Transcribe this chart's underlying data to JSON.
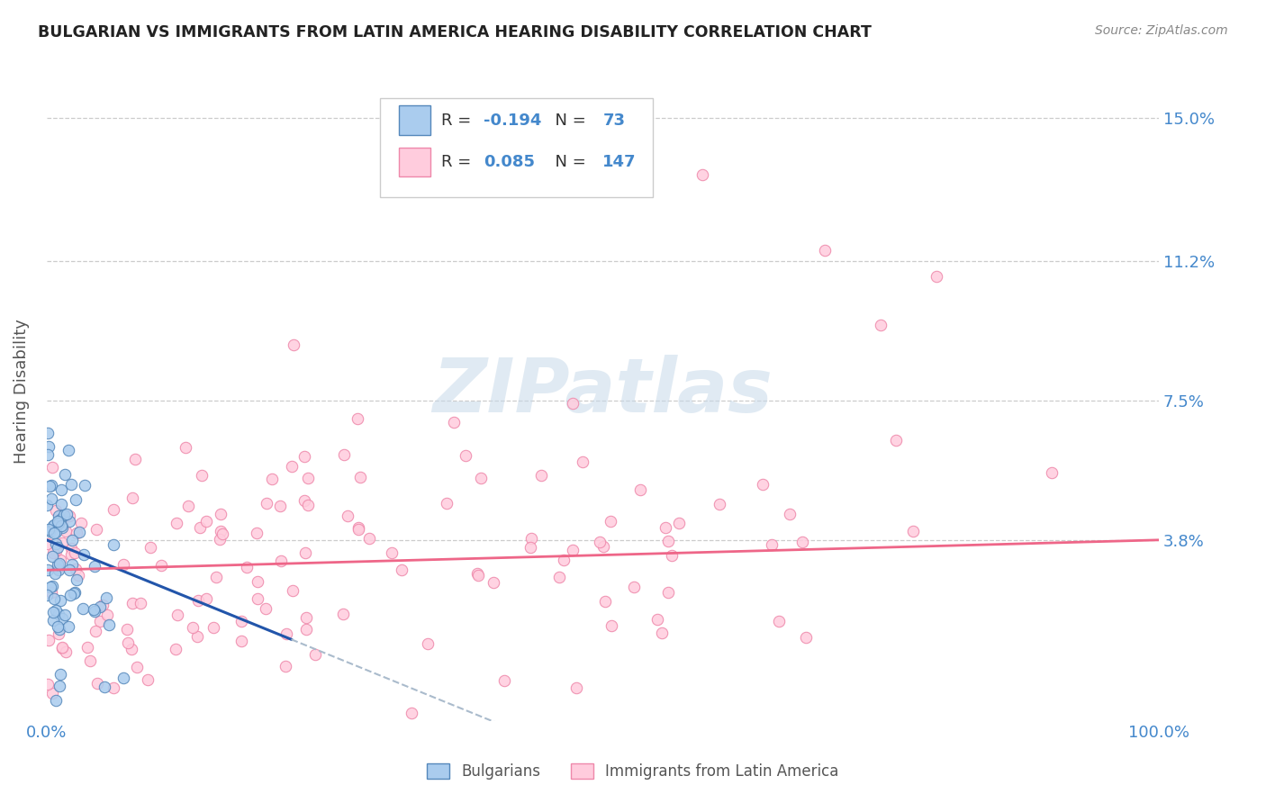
{
  "title": "BULGARIAN VS IMMIGRANTS FROM LATIN AMERICA HEARING DISABILITY CORRELATION CHART",
  "source": "Source: ZipAtlas.com",
  "ylabel": "Hearing Disability",
  "xlim": [
    0,
    1.0
  ],
  "ylim": [
    -0.01,
    0.165
  ],
  "yticks": [
    0.038,
    0.075,
    0.112,
    0.15
  ],
  "ytick_labels": [
    "3.8%",
    "7.5%",
    "11.2%",
    "15.0%"
  ],
  "xticks": [
    0.0,
    1.0
  ],
  "xtick_labels": [
    "0.0%",
    "100.0%"
  ],
  "bg_color": "#ffffff",
  "grid_color": "#cccccc",
  "blue_edge": "#5588bb",
  "blue_face": "#aaccee",
  "pink_edge": "#ee88aa",
  "pink_face": "#ffccdd",
  "blue_line_color": "#2255aa",
  "pink_line_color": "#ee6688",
  "dashed_line_color": "#aabbcc",
  "R_blue": -0.194,
  "N_blue": 73,
  "R_pink": 0.085,
  "N_pink": 147,
  "watermark": "ZIPatlas",
  "legend_blue": "Bulgarians",
  "legend_pink": "Immigrants from Latin America",
  "title_color": "#222222",
  "label_color": "#4488cc",
  "source_color": "#888888"
}
